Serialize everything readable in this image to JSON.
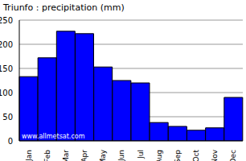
{
  "chart_data": {
    "type": "bar",
    "title": "Triunfo : precipitation (mm)",
    "categories": [
      "Jan",
      "Feb",
      "Mar",
      "Apr",
      "May",
      "Jun",
      "Jul",
      "Aug",
      "Sep",
      "Oct",
      "Nov",
      "Dec"
    ],
    "values": [
      133,
      172,
      227,
      222,
      153,
      125,
      120,
      38,
      30,
      22,
      27,
      90
    ],
    "color": "#0000ff",
    "ylim": [
      0,
      250
    ],
    "yticks": [
      0,
      50,
      100,
      150,
      200,
      250
    ],
    "grid": true,
    "annotation": "www.allmetsat.com"
  }
}
